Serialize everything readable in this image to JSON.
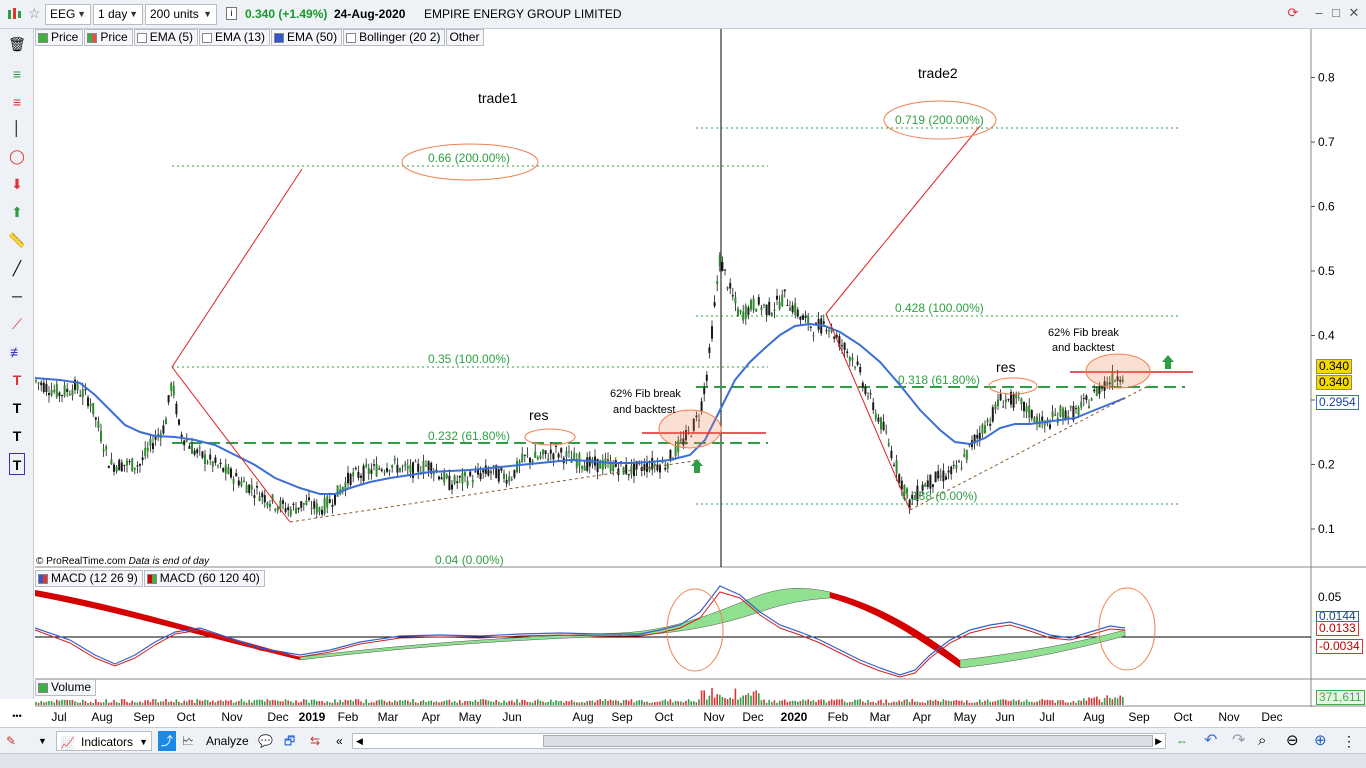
{
  "toolbar": {
    "ticker": "EEG",
    "interval": "1 day",
    "units": "200 units",
    "price_change": "0.340 (+1.49%)",
    "date": "24-Aug-2020",
    "company": "EMPIRE ENERGY GROUP LIMITED"
  },
  "legend": {
    "items": [
      "Price",
      "Price",
      "EMA (5)",
      "EMA (13)",
      "EMA (50)",
      "Bollinger (20 2)",
      "Other"
    ],
    "colors": [
      "#3cb043",
      "#e05050",
      "#ffffff",
      "#ffffff",
      "#3355cc",
      "#ffffff",
      "#ffffff"
    ]
  },
  "annotations": {
    "trade1": "trade1",
    "trade2": "trade2",
    "fib1_200": "0.66 (200.00%)",
    "fib1_100": "0.35 (100.00%)",
    "fib1_618": "0.232 (61.80%)",
    "fib1_0": "0.04 (0.00%)",
    "fib2_200": "0.719 (200.00%)",
    "fib2_100": "0.428 (100.00%)",
    "fib2_618": "0.318 (61.80%)",
    "fib2_0": "0.138 (0.00%)",
    "res1": "res",
    "res2": "res",
    "note1_line1": "62% Fib break",
    "note1_line2": "and backtest",
    "note2_line1": "62% Fib break",
    "note2_line2": "and backtest",
    "copyright": "© ProRealTime.com",
    "data_note": "Data is end of day"
  },
  "price_axis": {
    "ticks": [
      "0.8",
      "0.7",
      "0.6",
      "0.5",
      "0.4",
      "0.3",
      "0.2",
      "0.1"
    ],
    "tick_values": [
      0.8,
      0.7,
      0.6,
      0.5,
      0.4,
      0.3,
      0.2,
      0.1
    ],
    "label_price_1": "0.340",
    "label_price_2": "0.340",
    "label_ema": "0.2954"
  },
  "macd": {
    "legend1": "MACD (12 26 9)",
    "legend2": "MACD (60 120 40)",
    "ticks": [
      "0.05",
      "0.0144",
      "0.0133",
      "-0.0034"
    ]
  },
  "volume": {
    "legend": "Volume",
    "value": "371,611"
  },
  "time_axis": {
    "labels": [
      "Jul",
      "Aug",
      "Sep",
      "Oct",
      "Nov",
      "Dec",
      "2019",
      "Feb",
      "Mar",
      "Apr",
      "May",
      "Jun",
      "Aug",
      "Sep",
      "Oct",
      "Nov",
      "Dec",
      "2020",
      "Feb",
      "Mar",
      "Apr",
      "May",
      "Jun",
      "Jul",
      "Aug",
      "Sep",
      "Oct",
      "Nov",
      "Dec"
    ]
  },
  "bottom_bar": {
    "indicators": "Indicators",
    "analyze": "Analyze"
  },
  "colors": {
    "ema50": "#3a6fd8",
    "fib": "#2ea043",
    "trend": "#e02020",
    "ellipse": "#f08050",
    "macd_red": "#d40000",
    "macd_green": "#8fe08f"
  }
}
